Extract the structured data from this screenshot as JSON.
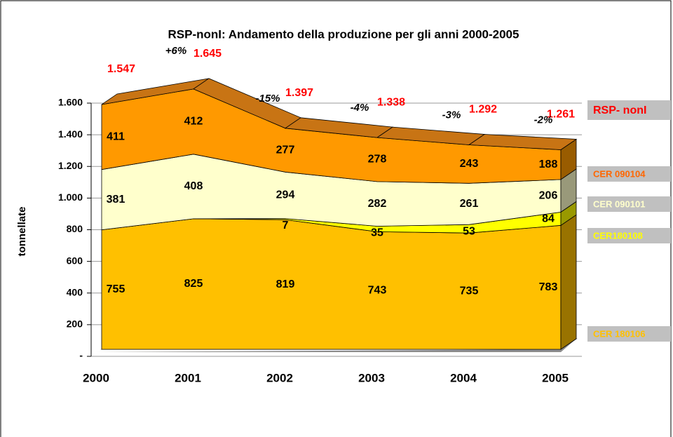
{
  "chart_data": {
    "type": "area3d",
    "title": "RSP-nonI: Andamento della produzione per gli anni 2000-2005",
    "y_label": "tonnellate",
    "categories": [
      "2000",
      "2001",
      "2002",
      "2003",
      "2004",
      "2005"
    ],
    "ylim": [
      0,
      1600
    ],
    "yticks": [
      {
        "value": 0,
        "label": "-"
      },
      200,
      400,
      600,
      800,
      {
        "value": 1000,
        "label": "1.000"
      },
      {
        "value": 1200,
        "label": "1.200"
      },
      {
        "value": 1400,
        "label": "1.400"
      },
      {
        "value": 1600,
        "label": "1.600"
      }
    ],
    "grid": true,
    "stacked": true,
    "series": [
      {
        "name": "CER 180106",
        "color": "#ffc000",
        "values": [
          755,
          825,
          819,
          743,
          735,
          783
        ]
      },
      {
        "name": "CER180108",
        "color": "#ffff00",
        "values": [
          0,
          0,
          7,
          35,
          53,
          84
        ],
        "value_labels": [
          null,
          null,
          "7",
          "35",
          "53",
          "84"
        ]
      },
      {
        "name": "CER 090101",
        "color": "#ffffcc",
        "values": [
          381,
          408,
          294,
          282,
          261,
          206
        ]
      },
      {
        "name": "CER 090104",
        "color": "#ff9900",
        "values": [
          411,
          412,
          277,
          278,
          243,
          188
        ]
      }
    ],
    "total": {
      "name": "RSP- nonI",
      "color": "#ff0000",
      "values": [
        1547,
        1645,
        1397,
        1338,
        1292,
        1261
      ],
      "value_labels": [
        "1.547",
        "1.645",
        "1.397",
        "1.338",
        "1.292",
        "1.261"
      ]
    },
    "changes": {
      "values": [
        6,
        -15,
        -4,
        -3,
        -2
      ],
      "value_labels": [
        "+6%",
        "-15%",
        "-4%",
        "-3%",
        "-2%"
      ]
    }
  }
}
